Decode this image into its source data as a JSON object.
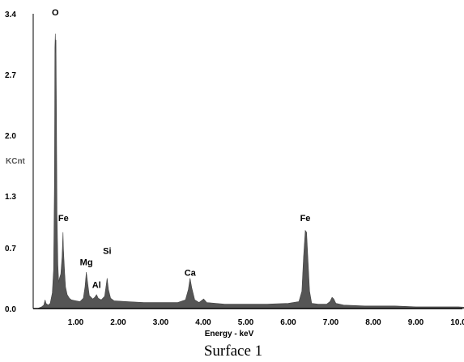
{
  "chart_data": {
    "type": "area",
    "title": "Surface 1",
    "xlabel": "Energy - keV",
    "ylabel": "KCnt",
    "xlim": [
      0,
      10.3
    ],
    "ylim": [
      0,
      3.4
    ],
    "x_ticks": [
      "1.00",
      "2.00",
      "3.00",
      "4.00",
      "5.00",
      "6.00",
      "7.00",
      "8.00",
      "9.00",
      "10.0"
    ],
    "y_ticks": [
      "0.0",
      "0.7",
      "1.3",
      "2.0",
      "2.7",
      "3.4"
    ],
    "fill_color": "#555555",
    "peak_labels": [
      {
        "text": "O",
        "x": 0.52,
        "y": 3.38
      },
      {
        "text": "Fe",
        "x": 0.71,
        "y": 1.01
      },
      {
        "text": "Mg",
        "x": 1.25,
        "y": 0.5
      },
      {
        "text": "Si",
        "x": 1.74,
        "y": 0.63
      },
      {
        "text": "Al",
        "x": 1.49,
        "y": 0.24
      },
      {
        "text": "Ca",
        "x": 3.69,
        "y": 0.38
      },
      {
        "text": "Fe",
        "x": 6.4,
        "y": 1.01
      }
    ],
    "spectrum": [
      [
        0.1,
        0.0
      ],
      [
        0.15,
        0.01
      ],
      [
        0.2,
        0.02
      ],
      [
        0.25,
        0.04
      ],
      [
        0.28,
        0.1
      ],
      [
        0.3,
        0.06
      ],
      [
        0.35,
        0.04
      ],
      [
        0.4,
        0.06
      ],
      [
        0.45,
        0.18
      ],
      [
        0.48,
        0.45
      ],
      [
        0.5,
        1.5
      ],
      [
        0.51,
        3.0
      ],
      [
        0.52,
        3.17
      ],
      [
        0.53,
        2.95
      ],
      [
        0.535,
        3.1
      ],
      [
        0.545,
        2.4
      ],
      [
        0.56,
        1.1
      ],
      [
        0.58,
        0.5
      ],
      [
        0.6,
        0.3
      ],
      [
        0.62,
        0.35
      ],
      [
        0.65,
        0.4
      ],
      [
        0.68,
        0.6
      ],
      [
        0.7,
        0.88
      ],
      [
        0.71,
        0.7
      ],
      [
        0.72,
        0.6
      ],
      [
        0.74,
        0.42
      ],
      [
        0.76,
        0.25
      ],
      [
        0.8,
        0.16
      ],
      [
        0.85,
        0.12
      ],
      [
        0.9,
        0.1
      ],
      [
        1.0,
        0.09
      ],
      [
        1.1,
        0.08
      ],
      [
        1.18,
        0.12
      ],
      [
        1.22,
        0.25
      ],
      [
        1.25,
        0.42
      ],
      [
        1.28,
        0.3
      ],
      [
        1.32,
        0.15
      ],
      [
        1.4,
        0.11
      ],
      [
        1.45,
        0.13
      ],
      [
        1.49,
        0.16
      ],
      [
        1.53,
        0.12
      ],
      [
        1.6,
        0.1
      ],
      [
        1.68,
        0.14
      ],
      [
        1.72,
        0.28
      ],
      [
        1.74,
        0.35
      ],
      [
        1.77,
        0.22
      ],
      [
        1.82,
        0.12
      ],
      [
        1.9,
        0.09
      ],
      [
        2.2,
        0.08
      ],
      [
        2.6,
        0.07
      ],
      [
        3.0,
        0.07
      ],
      [
        3.4,
        0.07
      ],
      [
        3.58,
        0.1
      ],
      [
        3.65,
        0.22
      ],
      [
        3.69,
        0.35
      ],
      [
        3.73,
        0.24
      ],
      [
        3.8,
        0.1
      ],
      [
        3.9,
        0.07
      ],
      [
        4.01,
        0.11
      ],
      [
        4.08,
        0.07
      ],
      [
        4.5,
        0.05
      ],
      [
        5.0,
        0.05
      ],
      [
        5.5,
        0.05
      ],
      [
        6.0,
        0.06
      ],
      [
        6.25,
        0.08
      ],
      [
        6.32,
        0.2
      ],
      [
        6.36,
        0.6
      ],
      [
        6.4,
        0.9
      ],
      [
        6.43,
        0.88
      ],
      [
        6.46,
        0.6
      ],
      [
        6.5,
        0.2
      ],
      [
        6.55,
        0.06
      ],
      [
        6.7,
        0.05
      ],
      [
        6.9,
        0.05
      ],
      [
        6.98,
        0.08
      ],
      [
        7.03,
        0.13
      ],
      [
        7.07,
        0.11
      ],
      [
        7.12,
        0.06
      ],
      [
        7.3,
        0.04
      ],
      [
        7.8,
        0.03
      ],
      [
        8.5,
        0.03
      ],
      [
        9.0,
        0.02
      ],
      [
        9.5,
        0.02
      ],
      [
        10.0,
        0.02
      ],
      [
        10.3,
        0.01
      ]
    ]
  }
}
